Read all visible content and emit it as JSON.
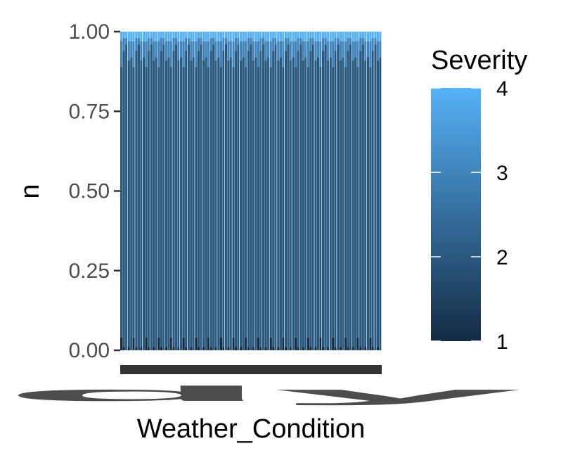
{
  "chart_data": {
    "type": "bar",
    "stacked": "fill",
    "title": "",
    "xlabel": "Weather_Condition",
    "ylabel": "n",
    "ylim": [
      0,
      1
    ],
    "y_ticks": [
      "0.00",
      "0.25",
      "0.50",
      "0.75",
      "1.00"
    ],
    "x_tick_labels_note": "x tick labels are overplotted and illegible; only the trailing fragment \"dy\" is readable",
    "x_tick_visible_fragment": "dy",
    "grid": false,
    "legend": {
      "title": "Severity",
      "type": "colorbar",
      "ticks": [
        "1",
        "2",
        "3",
        "4"
      ],
      "position": "right",
      "low_color": "#132B43",
      "high_color": "#56B1F7"
    },
    "severity_levels": [
      1,
      2,
      3,
      4
    ],
    "categories_count": 105,
    "bar_share_estimate": {
      "sev1": [
        0.04,
        0.01,
        0.0,
        0.01,
        0.0
      ],
      "sev2": [
        0.85,
        0.93,
        0.96,
        0.9,
        0.92
      ],
      "sev3": [
        0.08,
        0.04,
        0.02,
        0.06,
        0.05
      ],
      "sev4": [
        0.03,
        0.02,
        0.02,
        0.03,
        0.03
      ]
    }
  }
}
